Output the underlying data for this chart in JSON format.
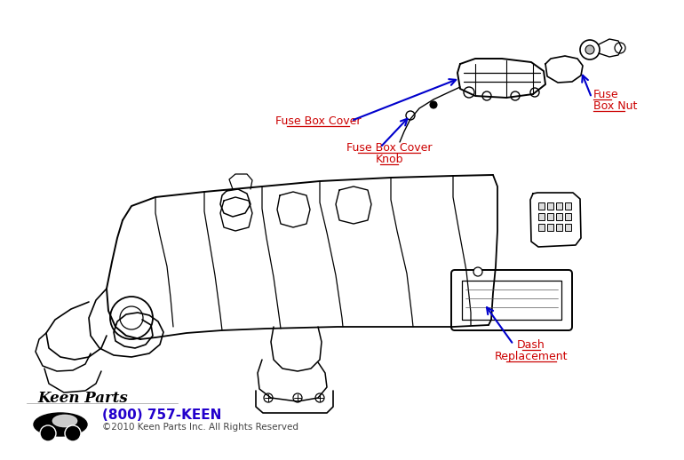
{
  "bg_color": "#ffffff",
  "labels": {
    "fuse_box_cover": "Fuse Box Cover",
    "fuse_box_cover_knob": "Fuse Box Cover\nKnob",
    "fuse_box_nut": "Fuse\nBox Nut",
    "dash_replacement": "Dash\nReplacement"
  },
  "label_color": "#cc0000",
  "arrow_color": "#0000cc",
  "watermark_phone": "(800) 757-KEEN",
  "watermark_copy": "©2010 Keen Parts Inc. All Rights Reserved",
  "watermark_color": "#2200cc",
  "watermark_copy_color": "#444444",
  "figsize": [
    7.7,
    5.18
  ],
  "dpi": 100
}
